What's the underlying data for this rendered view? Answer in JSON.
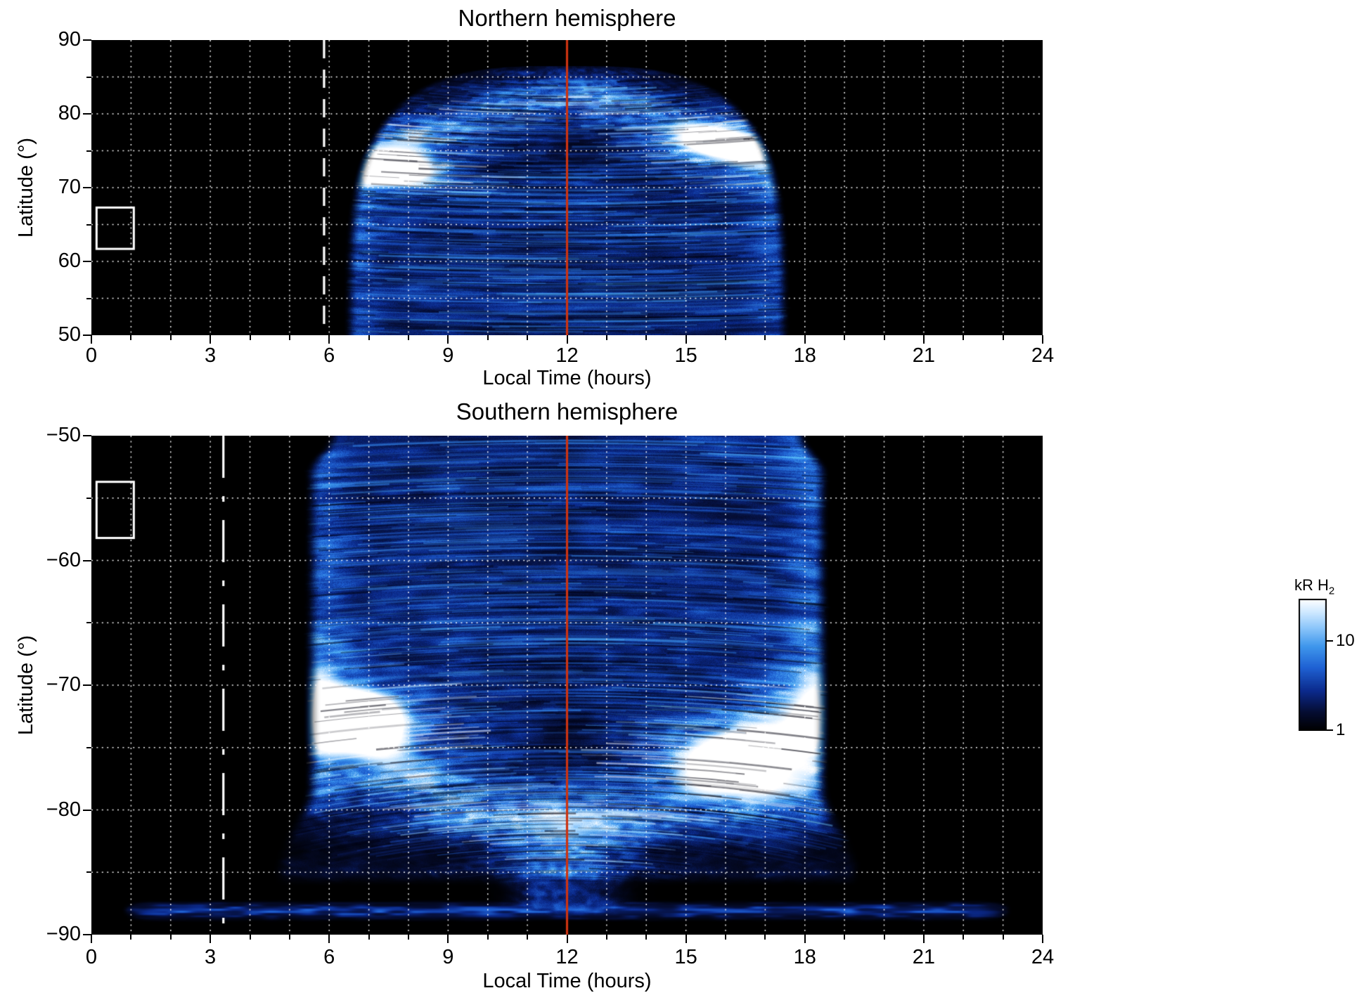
{
  "figure": {
    "background": "#ffffff",
    "text_color": "#000000"
  },
  "chart_data": [
    {
      "type": "heatmap",
      "title": "Northern hemisphere",
      "xlabel": "Local Time (hours)",
      "ylabel": "Latitude (°)",
      "xlim": [
        0,
        24
      ],
      "ylim": [
        50,
        90
      ],
      "xticks": [
        0,
        3,
        6,
        9,
        12,
        15,
        18,
        21,
        24
      ],
      "xtick_labels": [
        "0",
        "3",
        "6",
        "9",
        "12",
        "15",
        "18",
        "21",
        "24"
      ],
      "x_minor_step": 1,
      "yticks": [
        90,
        80,
        70,
        60,
        50
      ],
      "ytick_labels": [
        "90",
        "80",
        "70",
        "60",
        "50"
      ],
      "y_minor_step": 5,
      "plot_background": "#000000",
      "grid": {
        "color": "#ffffff",
        "style": "dotted"
      },
      "annotations": {
        "dawn_terminator_line": {
          "x": 5.87,
          "color": "#ffffff",
          "style": "dashed"
        },
        "noon_meridian_line": {
          "x": 12,
          "color": "#cc3311",
          "style": "solid"
        },
        "highlight_box": {
          "lt_range": [
            0.13,
            1.07
          ],
          "lat_range": [
            61.7,
            67.3
          ],
          "color": "#ffffff"
        }
      },
      "emission": {
        "quantity": "H2 auroral brightness",
        "units": "kR",
        "coverage_lt_range": [
          6.5,
          17.55
        ],
        "coverage_lat_range": [
          50,
          86.5
        ],
        "auroral_oval": {
          "lat_at_noon": 82,
          "lat_at_flanks": 70,
          "width_deg": 3.5
        },
        "bright_spots": [
          {
            "lt": 7.9,
            "lat": 72,
            "relative_intensity": 1.75
          },
          {
            "lt": 15.55,
            "lat": 76,
            "relative_intensity": 1.1
          }
        ],
        "dark_gap": {
          "lt": 12.3,
          "lat": 75.3
        },
        "diffuse_level": 0.33,
        "seed": 7
      }
    },
    {
      "type": "heatmap",
      "title": "Southern hemisphere",
      "xlabel": "Local Time (hours)",
      "ylabel": "Latitude (°)",
      "xlim": [
        0,
        24
      ],
      "ylim": [
        -90,
        -50
      ],
      "xticks": [
        0,
        3,
        6,
        9,
        12,
        15,
        18,
        21,
        24
      ],
      "xtick_labels": [
        "0",
        "3",
        "6",
        "9",
        "12",
        "15",
        "18",
        "21",
        "24"
      ],
      "x_minor_step": 1,
      "yticks": [
        -50,
        -60,
        -70,
        -80,
        -90
      ],
      "ytick_labels": [
        "−50",
        "−60",
        "−70",
        "−80",
        "−90"
      ],
      "y_minor_step": 5,
      "plot_background": "#000000",
      "grid": {
        "color": "#ffffff",
        "style": "dotted"
      },
      "annotations": {
        "dawn_dashdot_line": {
          "x": 3.33,
          "color": "#ffffff",
          "style": "dash-dot"
        },
        "noon_meridian_line": {
          "x": 12,
          "color": "#cc3311",
          "style": "solid"
        },
        "highlight_box": {
          "lt_range": [
            0.13,
            1.07
          ],
          "lat_range": [
            -58.2,
            -53.7
          ],
          "color": "#ffffff"
        }
      },
      "emission": {
        "quantity": "H2 auroral brightness",
        "units": "kR",
        "coverage_lt_range": [
          5.5,
          18.5
        ],
        "coverage_lat_range": [
          -86,
          -50
        ],
        "auroral_oval": {
          "lat_at_noon": -82,
          "lat_at_flanks": -70,
          "width_deg": 3.5
        },
        "bright_spots": [
          {
            "lt": 6.9,
            "lat": -72.5,
            "relative_intensity": 1.85
          },
          {
            "lt": 15.6,
            "lat": -75.6,
            "relative_intensity": 1.2
          },
          {
            "lt": 17.2,
            "lat": -78.6,
            "relative_intensity": 1.0
          }
        ],
        "dark_gap": {
          "lt": 12.1,
          "lat": -74.3
        },
        "noon_curtain": {
          "lt": 12,
          "lat_range": [
            -78,
            -88.5
          ]
        },
        "polar_band": {
          "lat": -88.1,
          "lt_range": [
            1.2,
            22.8
          ],
          "relative_intensity": 0.32
        },
        "diffuse_level": 0.35,
        "seed": 21
      }
    }
  ],
  "colorbar": {
    "label": "kR H",
    "label_sub": "2",
    "scale": "log",
    "vmin": 1,
    "vmax": 30,
    "tick_labels": [
      "10",
      "1"
    ],
    "tick_values": [
      10,
      1
    ],
    "stops": [
      {
        "t": 0.0,
        "color": "#000000"
      },
      {
        "t": 0.14,
        "color": "#050d33"
      },
      {
        "t": 0.3,
        "color": "#0b2a8c"
      },
      {
        "t": 0.48,
        "color": "#1f62d4"
      },
      {
        "t": 0.64,
        "color": "#3f97ec"
      },
      {
        "t": 0.78,
        "color": "#8cc6fa"
      },
      {
        "t": 0.9,
        "color": "#cfe9ff"
      },
      {
        "t": 1.0,
        "color": "#ffffff"
      }
    ]
  }
}
